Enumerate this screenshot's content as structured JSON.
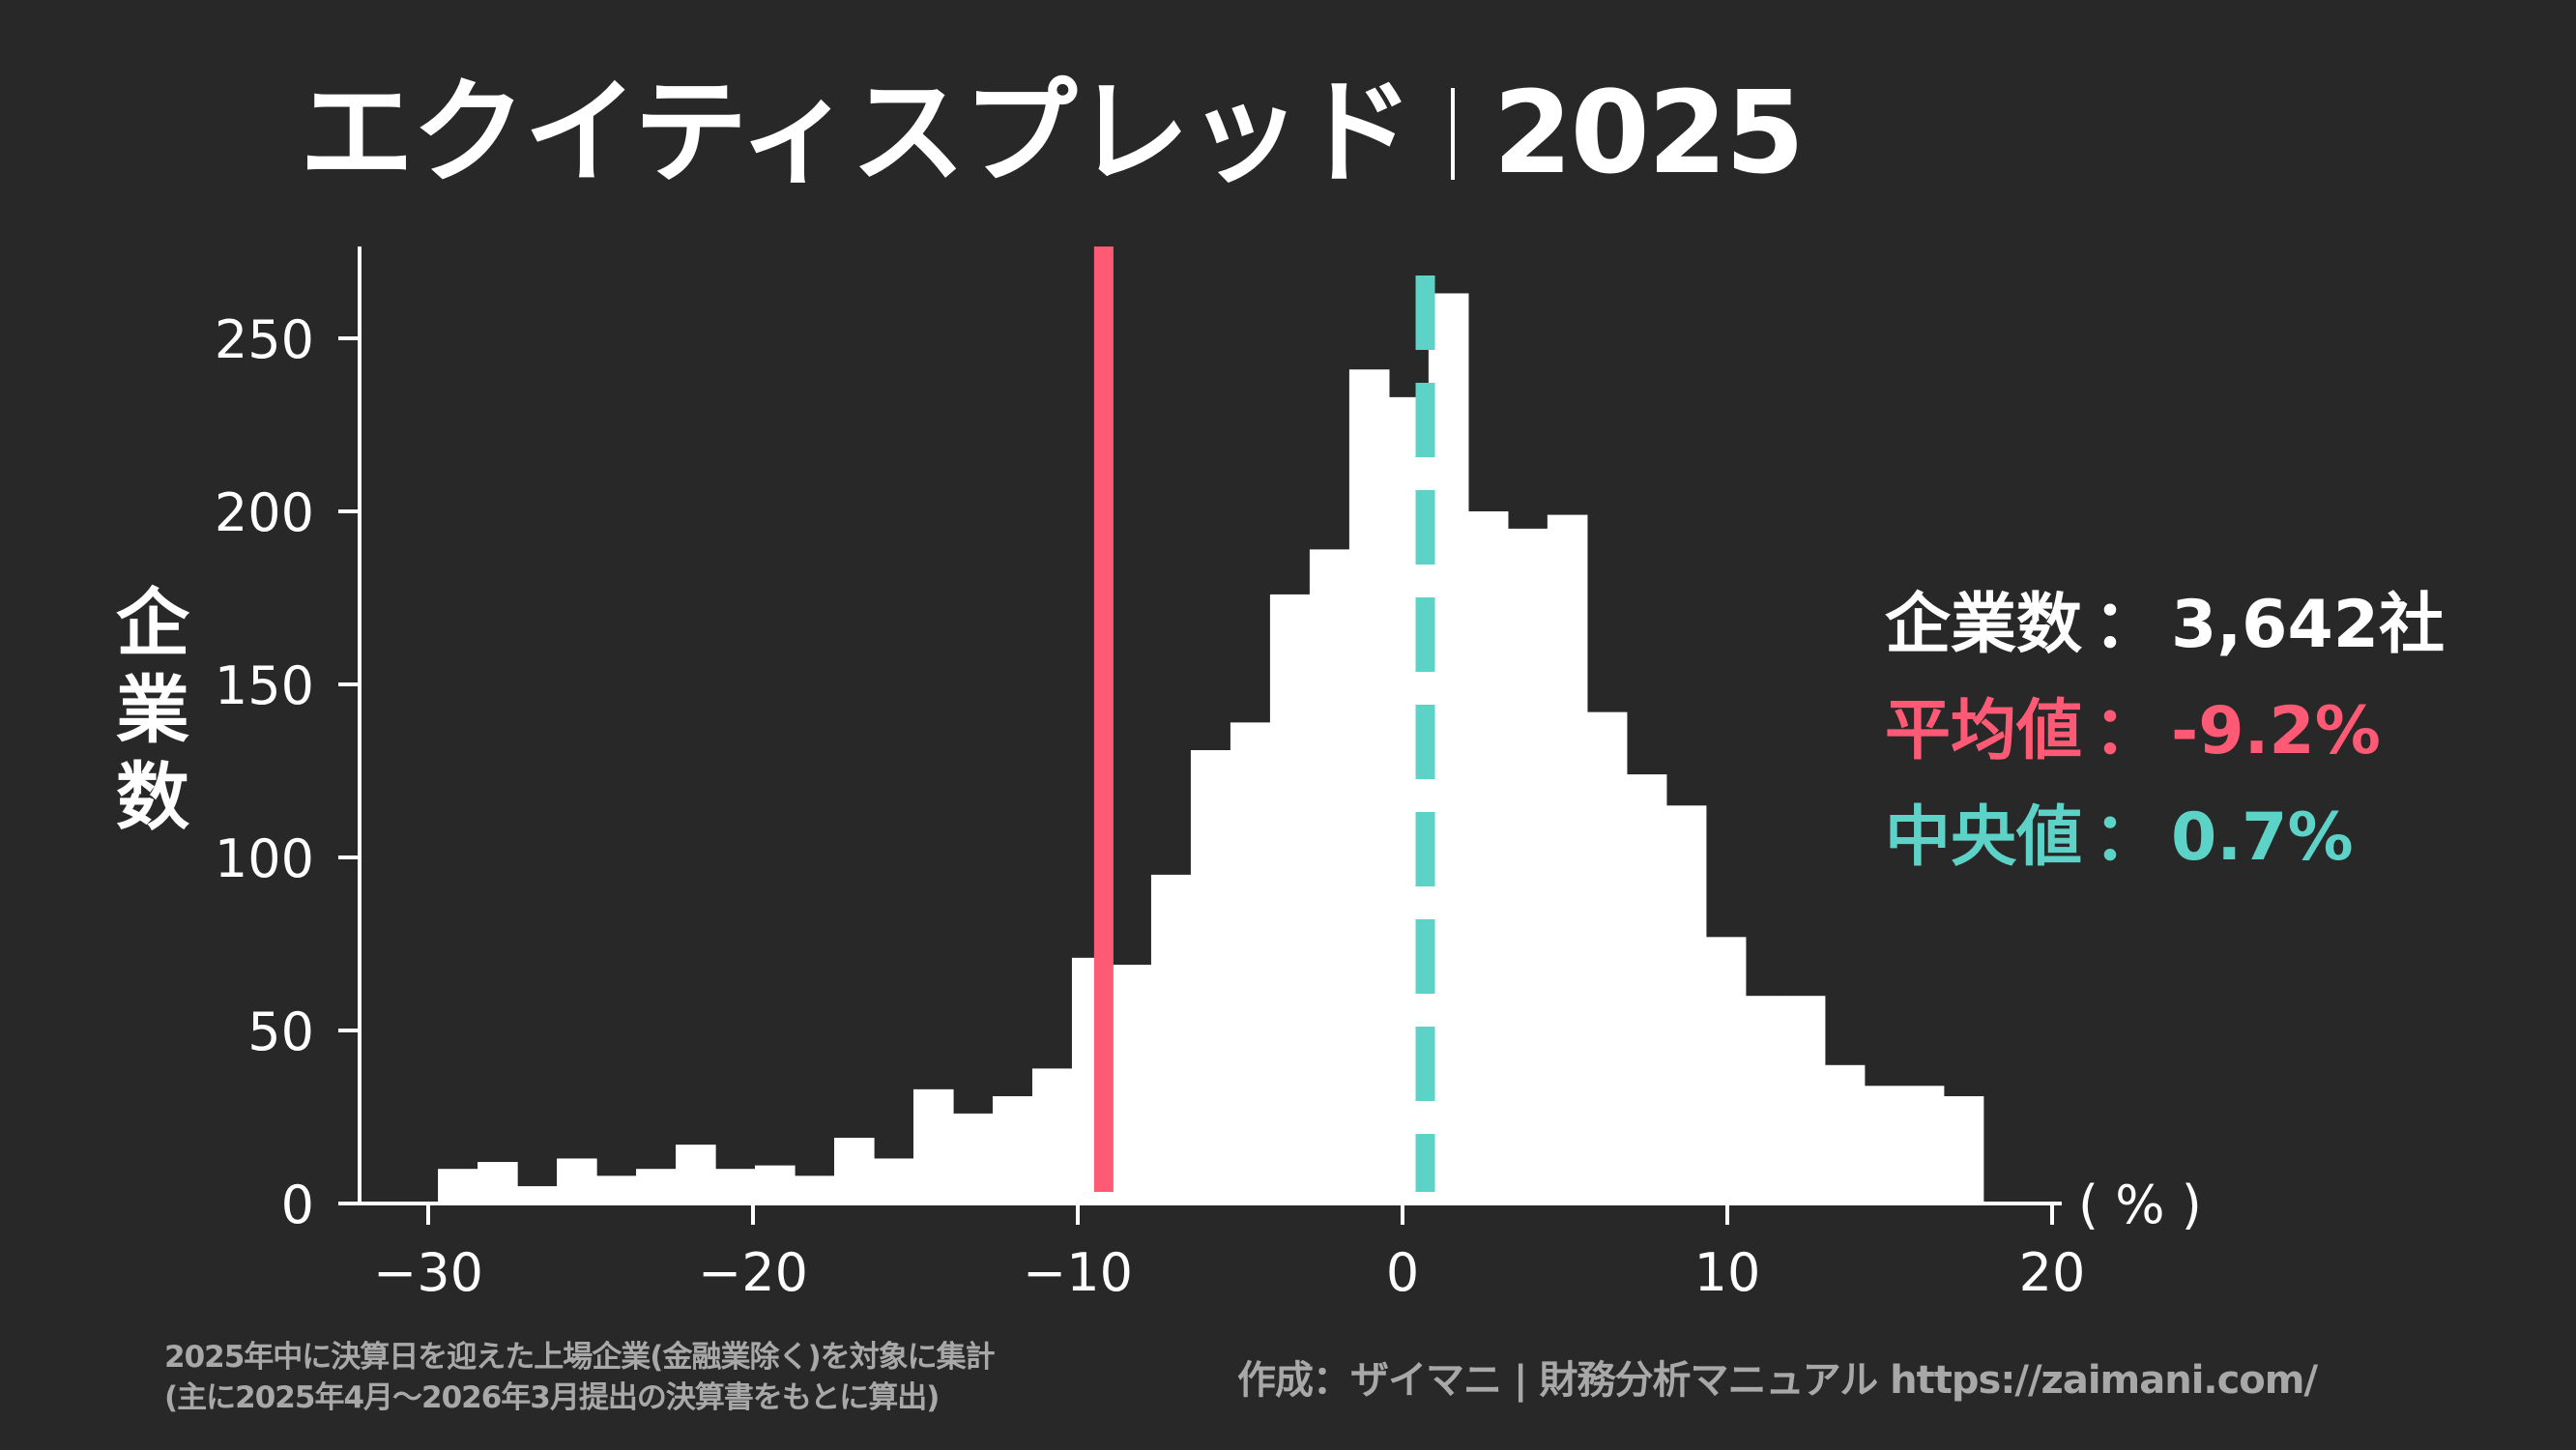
{
  "title": {
    "main": "エクイティスプレッド",
    "year": "2025"
  },
  "y_axis_label": [
    "企",
    "業",
    "数"
  ],
  "x_axis_unit": "( % )",
  "stats": {
    "companies_label": "企業数",
    "companies_value": "3,642社",
    "mean_label": "平均値",
    "mean_value": "-9.2%",
    "median_label": "中央値",
    "median_value": "0.7%",
    "separator": "："
  },
  "footnote": {
    "line1": "2025年中に決算日を迎えた上場企業(金融業除く)を対象に集計",
    "line2": "(主に2025年4月〜2026年3月提出の決算書をもとに算出)"
  },
  "credit": "作成：ザイマニ | 財務分析マニュアル https://zaimani.com/",
  "colors": {
    "background": "#282828",
    "bars": "#ffffff",
    "mean": "#ff5a75",
    "median": "#5dd3c8",
    "axis": "#ffffff",
    "muted_text": "#a8a8a8"
  },
  "chart_data": {
    "type": "bar",
    "subtype": "histogram",
    "title": "エクイティスプレッド｜2025",
    "xlabel": "( % )",
    "ylabel": "企業数",
    "bin_start": -29.7,
    "bin_width": 1.22,
    "values": [
      10,
      12,
      5,
      13,
      8,
      10,
      17,
      10,
      11,
      8,
      19,
      13,
      33,
      26,
      31,
      39,
      71,
      69,
      95,
      131,
      139,
      176,
      189,
      241,
      233,
      263,
      200,
      195,
      199,
      142,
      124,
      115,
      77,
      60,
      60,
      40,
      34,
      34,
      31
    ],
    "xlim": [
      -32,
      20
    ],
    "ylim": [
      0,
      277
    ],
    "x_ticks": [
      -30,
      -20,
      -10,
      0,
      10,
      20
    ],
    "x_tick_labels": [
      "−30",
      "−20",
      "−10",
      "0",
      "10",
      "20"
    ],
    "y_ticks": [
      0,
      50,
      100,
      150,
      200,
      250
    ],
    "y_tick_labels": [
      "0",
      "50",
      "100",
      "150",
      "200",
      "250"
    ],
    "reference_lines": [
      {
        "name": "平均値",
        "value": -9.2,
        "style": "solid",
        "color": "#ff5a75"
      },
      {
        "name": "中央値",
        "value": 0.7,
        "style": "dashed",
        "color": "#5dd3c8"
      }
    ],
    "annotations": [
      "企業数：3,642社",
      "平均値：-9.2%",
      "中央値：0.7%"
    ],
    "grid": false,
    "legend": "none"
  }
}
